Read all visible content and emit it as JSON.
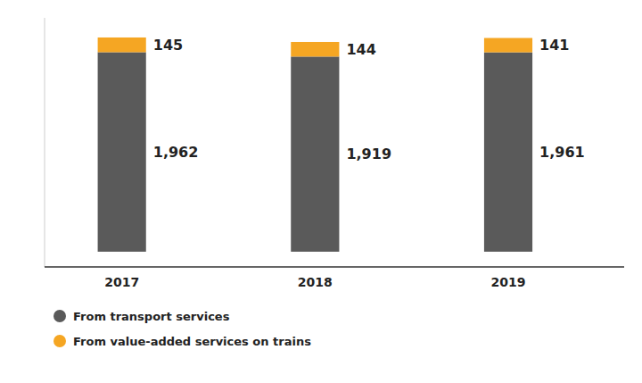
{
  "chart_data": {
    "type": "bar",
    "stacked": true,
    "categories": [
      "2017",
      "2018",
      "2019"
    ],
    "series": [
      {
        "name": "From transport services",
        "color": "#5a5a5a",
        "values": [
          1962,
          1919,
          1961
        ],
        "value_labels": [
          "1,962",
          "1,919",
          "1,961"
        ]
      },
      {
        "name": "From value-added services on trains",
        "color": "#F5A623",
        "values": [
          145,
          144,
          141
        ]
      }
    ],
    "ylim": [
      -150,
      2300
    ],
    "data_labels": true,
    "tick_labels": "x",
    "legend": "bottom"
  }
}
